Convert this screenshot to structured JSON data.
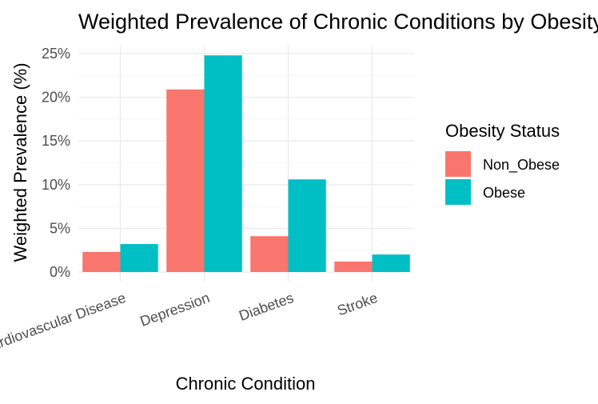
{
  "chart_data": {
    "type": "bar",
    "title": "Weighted Prevalence of Chronic Conditions by Obesity Status",
    "xlabel": "Chronic Condition",
    "ylabel": "Weighted Prevalence (%)",
    "categories": [
      "Cardiovascular Disease",
      "Depression",
      "Diabetes",
      "Stroke"
    ],
    "series": [
      {
        "name": "Non_Obese",
        "color": "#F8766D",
        "values": [
          2.3,
          20.9,
          4.1,
          1.2
        ]
      },
      {
        "name": "Obese",
        "color": "#00BFC4",
        "values": [
          3.2,
          24.8,
          10.6,
          2.0
        ]
      }
    ],
    "ylim": [
      0,
      25
    ],
    "yticks": [
      0,
      5,
      10,
      15,
      20,
      25
    ],
    "ytick_labels": [
      "0%",
      "5%",
      "10%",
      "15%",
      "20%",
      "25%"
    ],
    "grid": true,
    "legend": {
      "title": "Obesity Status",
      "position": "right"
    }
  }
}
